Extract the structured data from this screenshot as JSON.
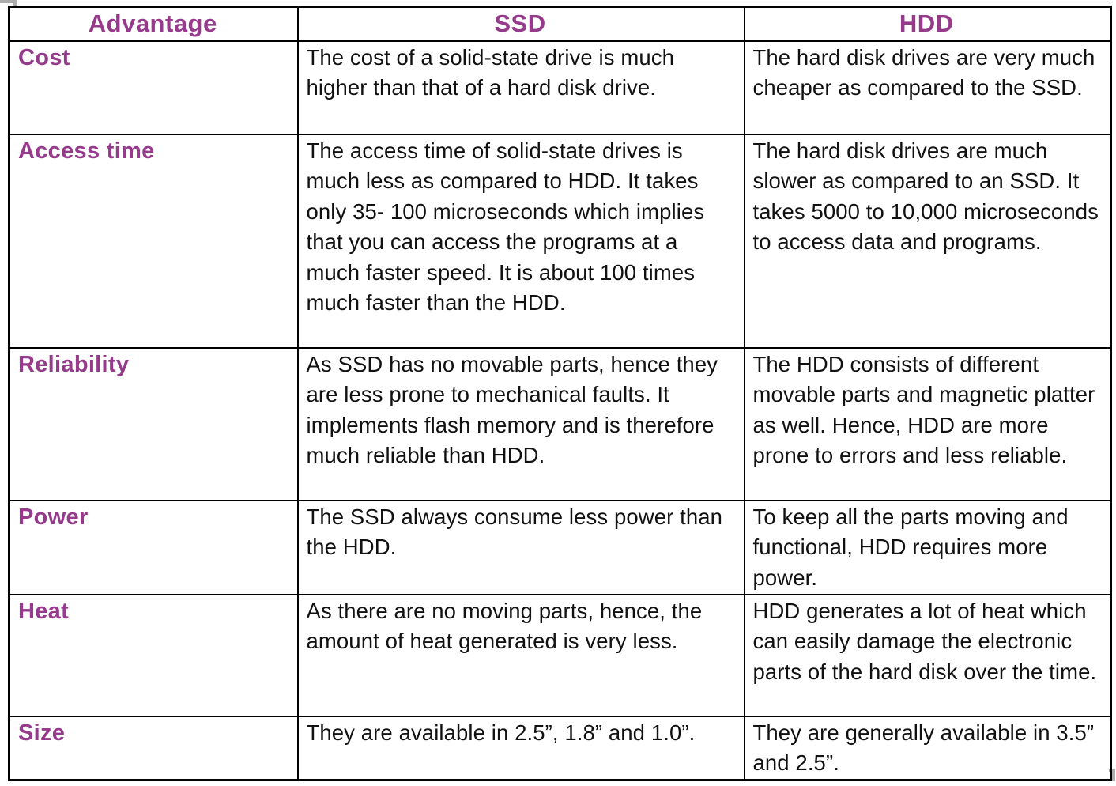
{
  "page": {
    "background": "#ffffff",
    "accent_color": "#963a8b",
    "border_color": "#000000",
    "artifact_color": "#adadad"
  },
  "table": {
    "headers": {
      "advantage": "Advantage",
      "ssd": "SSD",
      "hdd": "HDD"
    },
    "rows": [
      {
        "advantage": "Cost",
        "ssd": "The cost of a solid-state drive is much higher than that of a hard disk drive.",
        "hdd": "The hard disk drives are very much cheaper as compared to the SSD."
      },
      {
        "advantage": "Access time",
        "ssd": "The access time of solid-state drives is much less as compared to HDD. It takes only 35- 100 microseconds which implies that you can access the programs at a much faster speed. It is about 100 times much faster than the HDD.",
        "hdd": "The hard disk drives are much slower as compared to an SSD. It takes 5000 to 10,000 microseconds to access data and programs."
      },
      {
        "advantage": "Reliability",
        "ssd": "As SSD has no movable parts, hence they are less prone to mechanical faults. It implements flash memory and is therefore much reliable than HDD.",
        "hdd": "The HDD consists of different movable parts and magnetic platter as well. Hence, HDD are more prone to errors and less reliable."
      },
      {
        "advantage": "Power",
        "ssd": "The SSD always consume less power than the HDD.",
        "hdd": "To keep all the parts moving and functional, HDD requires more power."
      },
      {
        "advantage": "Heat",
        "ssd": "As there are no moving parts, hence, the amount of heat generated is very less.",
        "hdd": "HDD generates a lot of heat which can easily damage the electronic parts of the hard disk over the time."
      },
      {
        "advantage": "Size",
        "ssd": "They are available in 2.5”, 1.8” and 1.0”.",
        "hdd": "They are generally available in 3.5” and 2.5”."
      }
    ]
  }
}
